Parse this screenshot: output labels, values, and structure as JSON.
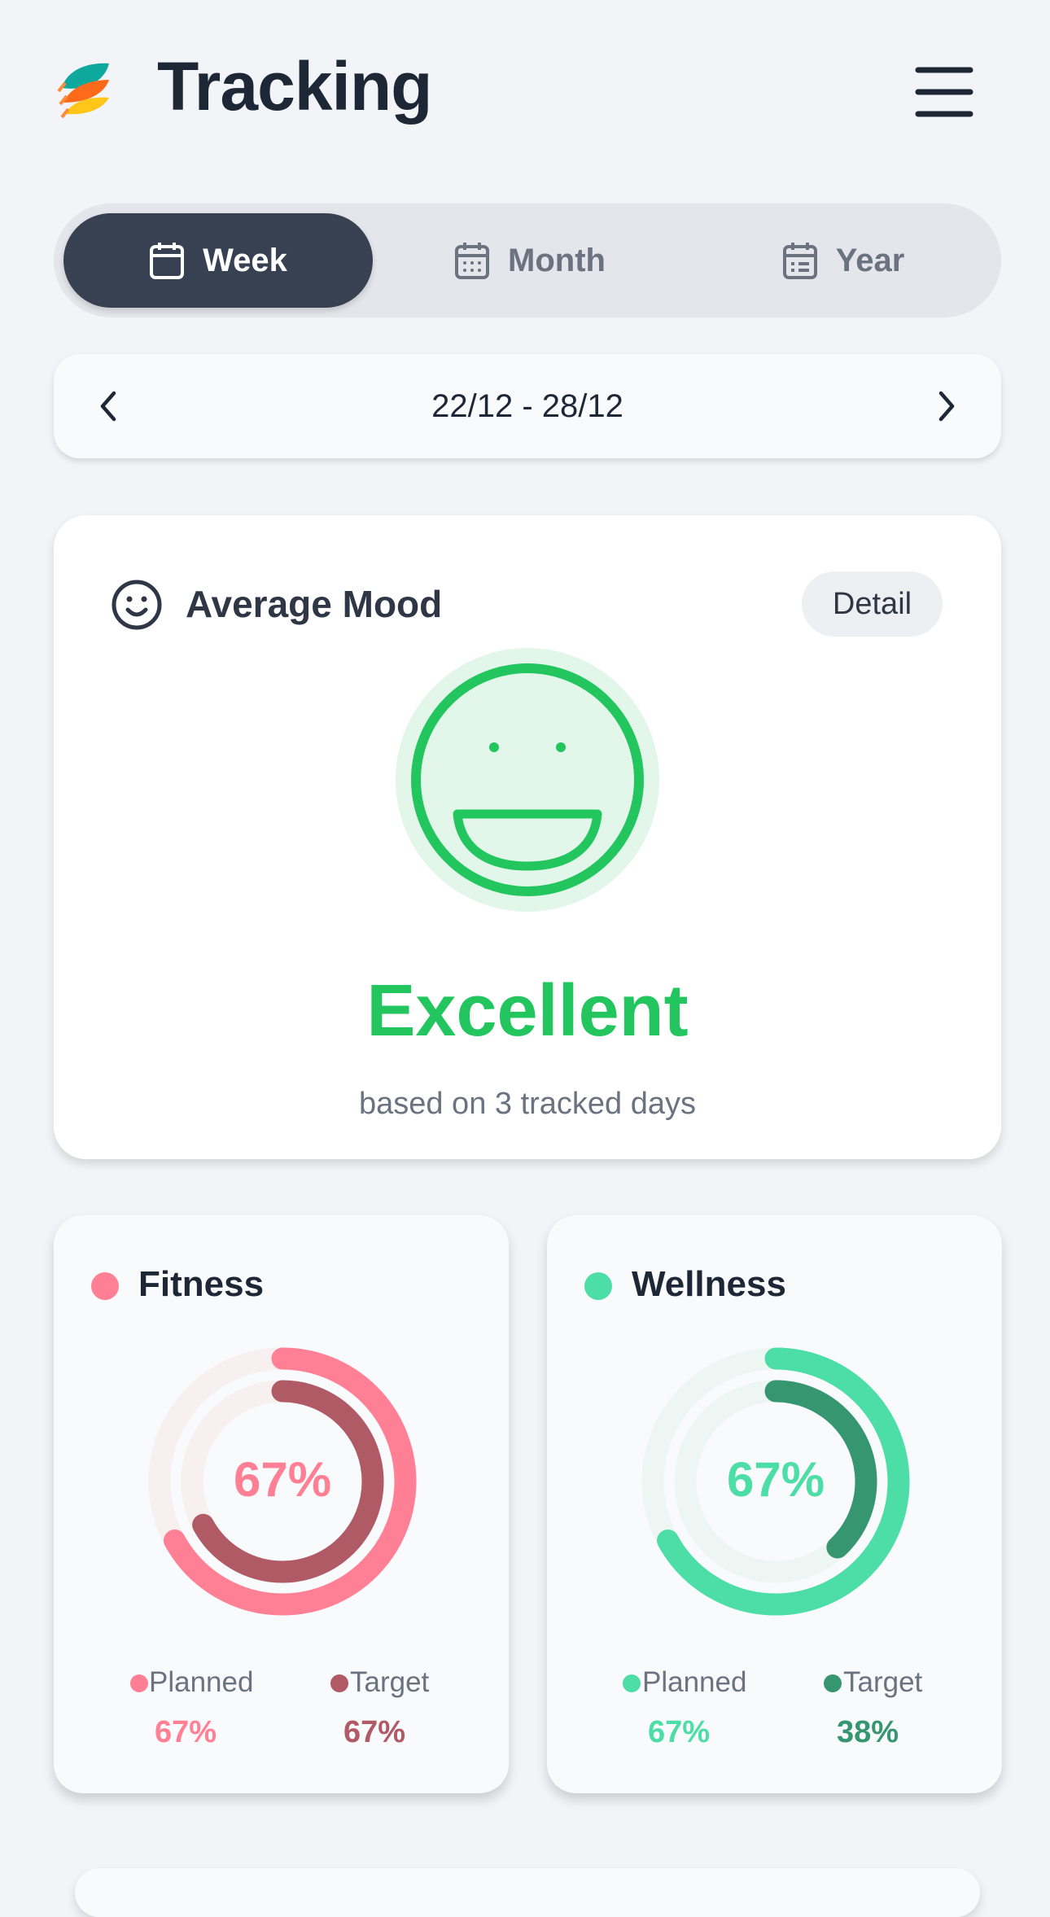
{
  "header": {
    "title": "Tracking",
    "logo": "leaf-stack-logo",
    "menu_icon": "hamburger-icon"
  },
  "period_tabs": [
    {
      "label": "Week",
      "icon": "calendar-icon",
      "active": true
    },
    {
      "label": "Month",
      "icon": "calendar-grid-icon",
      "active": false
    },
    {
      "label": "Year",
      "icon": "calendar-list-icon",
      "active": false
    }
  ],
  "date_nav": {
    "range": "22/12 - 28/12",
    "prev_icon": "chevron-left-icon",
    "next_icon": "chevron-right-icon"
  },
  "mood": {
    "title": "Average Mood",
    "detail_label": "Detail",
    "value": "Excellent",
    "subtitle": "based on 3 tracked days",
    "color": "#22c55e"
  },
  "metrics": [
    {
      "name": "Fitness",
      "center_label": "67%",
      "planned_label": "Planned",
      "planned_value": "67%",
      "planned": 67,
      "target_label": "Target",
      "target_value": "67%",
      "target": 67,
      "planned_color": "#ff8095",
      "target_color": "#b05a66",
      "track_color": "#f8eff0"
    },
    {
      "name": "Wellness",
      "center_label": "67%",
      "planned_label": "Planned",
      "planned_value": "67%",
      "planned": 67,
      "target_label": "Target",
      "target_value": "38%",
      "target": 38,
      "planned_color": "#4ddda6",
      "target_color": "#359670",
      "track_color": "#eef6f4"
    }
  ]
}
